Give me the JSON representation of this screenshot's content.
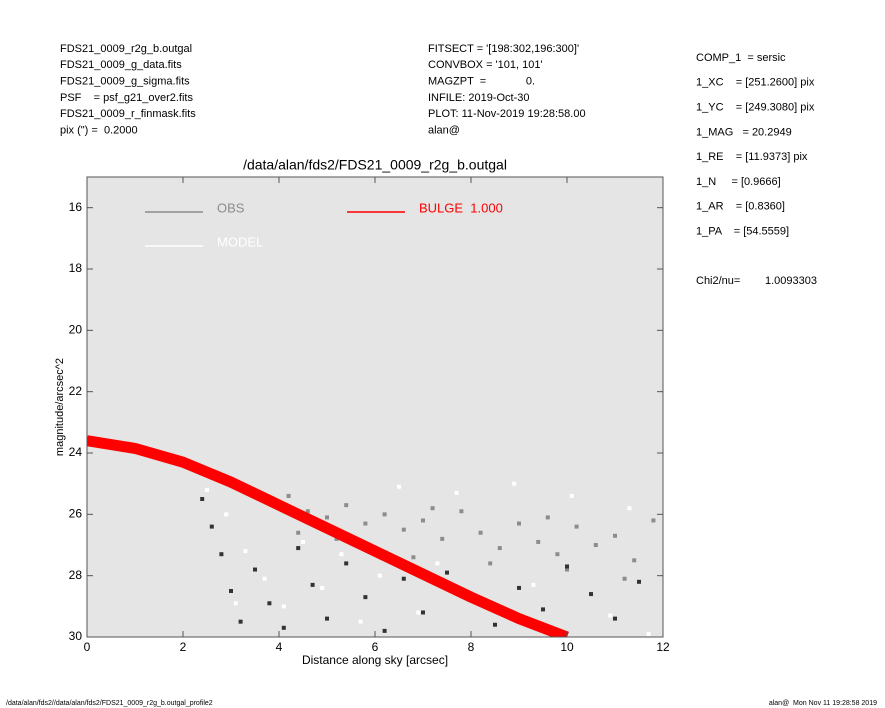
{
  "header": {
    "left": [
      "FDS21_0009_r2g_b.outgal",
      "FDS21_0009_g_data.fits",
      "FDS21_0009_g_sigma.fits",
      "PSF    = psf_g21_over2.fits",
      "FDS21_0009_r_finmask.fits",
      "pix (\") =  0.2000"
    ],
    "middle": [
      "FITSECT = '[198:302,196:300]'",
      "CONVBOX = '101, 101'",
      "MAGZPT  =             0.",
      "INFILE: 2019-Oct-30",
      "PLOT: 11-Nov-2019 19:28:58.00",
      "alan@"
    ]
  },
  "params": [
    "COMP_1  = sersic",
    "1_XC    = [251.2600] pix",
    "1_YC    = [249.3080] pix",
    "1_MAG   = 20.2949",
    "1_RE    = [11.9373] pix",
    "1_N     = [0.9666]",
    "1_AR    = [0.8360]",
    "1_PA    = [54.5559]"
  ],
  "chi2": {
    "label": "Chi2/nu=",
    "value": "1.0093303"
  },
  "footer": {
    "left": "/data/alan/fds2//data/alan/fds2/FDS21_0009_r2g_b.outgal_profile2",
    "right": "alan@  Mon Nov 11 19:28:58 2019"
  },
  "chart_data": {
    "type": "scatter",
    "title": "/data/alan/fds2/FDS21_0009_r2g_b.outgal",
    "xlabel": "Distance along sky [arcsec]",
    "ylabel": "magnitude/arcsec^2",
    "xlim": [
      0,
      12
    ],
    "ylim": [
      30,
      15
    ],
    "xticks": [
      0,
      2,
      4,
      6,
      8,
      10,
      12
    ],
    "yticks": [
      16,
      18,
      20,
      22,
      24,
      26,
      28,
      30
    ],
    "legend": "upper left",
    "background": "#e5e5e5",
    "series": [
      {
        "name": "MODEL",
        "color": "#ffffff",
        "x": [
          0.2,
          0.6,
          1.0,
          1.5,
          2.0,
          2.5,
          2.9,
          3.3,
          3.7,
          4.1,
          4.5,
          4.9,
          5.3,
          5.7,
          6.1,
          6.5,
          6.9,
          7.3,
          7.7,
          8.1,
          8.5,
          8.9,
          9.3,
          9.7,
          10.1,
          10.5,
          10.9,
          11.3,
          11.7,
          3.1
        ],
        "values": [
          23.6,
          23.8,
          23.9,
          24.1,
          24.3,
          25.2,
          26.0,
          27.2,
          28.1,
          29.0,
          26.9,
          28.4,
          27.3,
          29.5,
          28.0,
          25.1,
          29.2,
          27.6,
          25.3,
          28.8,
          29.6,
          25.0,
          28.3,
          29.8,
          25.4,
          28.6,
          29.3,
          25.8,
          29.9,
          28.9
        ]
      },
      {
        "name": "OBS",
        "color": "#8c8c8c",
        "x": [
          0.3,
          0.8,
          1.2,
          1.7,
          2.2,
          2.6,
          3.0,
          3.4,
          3.8,
          4.2,
          4.6,
          5.0,
          5.4,
          5.8,
          6.2,
          6.6,
          7.0,
          7.4,
          7.8,
          8.2,
          8.6,
          9.0,
          9.4,
          9.8,
          10.2,
          10.6,
          11.0,
          11.4,
          11.8,
          5.2,
          6.8,
          8.4,
          10.0,
          11.2,
          4.4,
          7.2,
          9.6
        ],
        "values": [
          23.7,
          23.9,
          24.0,
          24.2,
          24.5,
          24.8,
          25.0,
          25.3,
          25.6,
          25.4,
          25.9,
          26.1,
          25.7,
          26.3,
          26.0,
          26.5,
          26.2,
          26.8,
          25.9,
          26.6,
          27.1,
          26.3,
          26.9,
          27.3,
          26.4,
          27.0,
          26.7,
          27.5,
          26.2,
          26.8,
          27.4,
          27.6,
          27.8,
          28.1,
          26.6,
          25.8,
          26.1
        ]
      },
      {
        "color": "#333333",
        "x": [
          2.4,
          2.6,
          2.8,
          3.0,
          3.2,
          3.5,
          3.8,
          4.1,
          4.4,
          4.7,
          5.0,
          5.4,
          5.8,
          6.2,
          6.6,
          7.0,
          7.5,
          8.0,
          8.5,
          9.0,
          9.5,
          10.0,
          10.5,
          11.0,
          11.5
        ],
        "values": [
          25.5,
          26.4,
          27.3,
          28.5,
          29.5,
          27.8,
          28.9,
          29.7,
          27.1,
          28.3,
          29.4,
          27.6,
          28.7,
          29.8,
          28.1,
          29.2,
          27.9,
          28.8,
          29.6,
          28.4,
          29.1,
          27.7,
          28.6,
          29.4,
          28.2
        ]
      },
      {
        "name": "BULGE  1.000",
        "color": "#ff0000",
        "mark": "band",
        "x": [
          0,
          1,
          2,
          3,
          4,
          5,
          6,
          7,
          8,
          9,
          10
        ],
        "values": [
          23.6,
          23.85,
          24.3,
          24.95,
          25.7,
          26.45,
          27.2,
          27.95,
          28.7,
          29.4,
          30.0
        ]
      }
    ]
  }
}
